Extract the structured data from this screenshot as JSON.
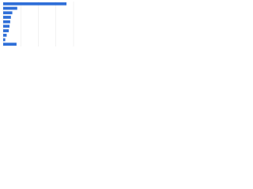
{
  "chart_data": {
    "type": "bar",
    "orientation": "horizontal",
    "categories": [
      null,
      null,
      null,
      null,
      null,
      null,
      null,
      null,
      null,
      null
    ],
    "values": [
      90,
      20,
      13,
      11,
      10,
      9,
      8,
      5,
      3,
      19
    ],
    "color": "#2f6fd8",
    "xlim": [
      0,
      100
    ],
    "xticks": [
      0,
      25,
      50,
      75,
      100
    ],
    "grid": true
  }
}
